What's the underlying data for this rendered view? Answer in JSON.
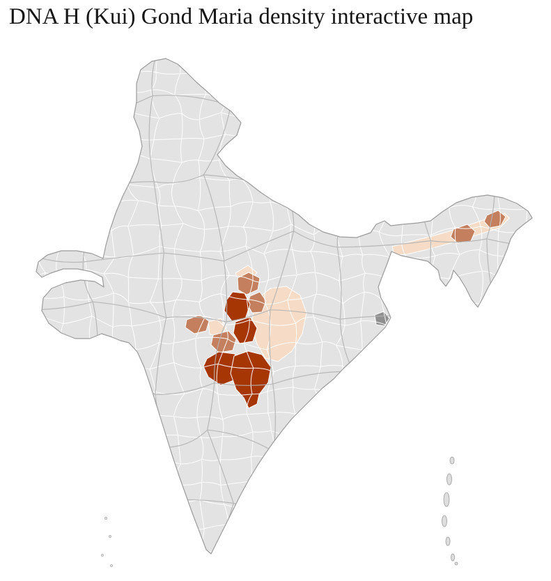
{
  "page": {
    "title": "DNA H (Kui) Gond Maria density interactive map",
    "background": "#ffffff"
  },
  "map": {
    "name": "india-district-density-choropleth",
    "base_fill": "#e3e3e3",
    "district_border": "#ffffff",
    "state_border": "#b3b3b3",
    "outline_color": "#9b9b9b",
    "island_fill": "#dedede",
    "levels": {
      "high": {
        "name": "high-density",
        "color": "#a63603"
      },
      "medium": {
        "name": "medium-density",
        "color": "#c4805e"
      },
      "low": {
        "name": "low-density",
        "color": "#f6dcc6"
      },
      "other": {
        "name": "dark-gray-district",
        "color": "#8f8f8f"
      }
    },
    "regions": {
      "central_cluster": "central-india-highlight",
      "northeast_band": "assam-valley-highlight"
    }
  }
}
